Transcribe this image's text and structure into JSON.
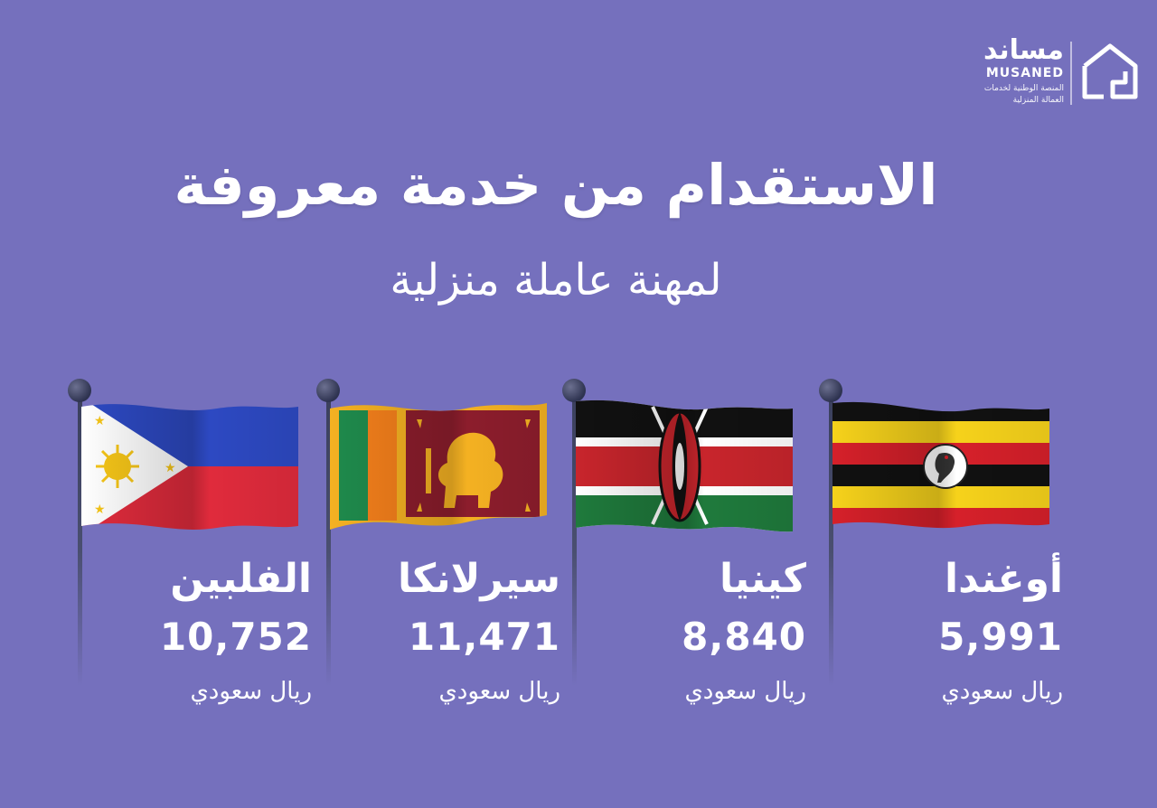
{
  "logo": {
    "arabic": "مساند",
    "english": "MUSANED",
    "tagline_line1": "المنصة الوطنية لخدمات",
    "tagline_line2": "العمالة المنزلية"
  },
  "title": "الاستقدام من خدمة معروفة",
  "subtitle": "لمهنة عاملة منزلية",
  "countries": [
    {
      "name": "الفلبين",
      "price": "10,752",
      "currency": "ريال سعودي",
      "flag": "philippines-flag"
    },
    {
      "name": "سيرلانكا",
      "price": "11,471",
      "currency": "ريال سعودي",
      "flag": "sri-lanka-flag"
    },
    {
      "name": "كينيا",
      "price": "8,840",
      "currency": "ريال سعودي",
      "flag": "kenya-flag"
    },
    {
      "name": "أوغندا",
      "price": "5,991",
      "currency": "ريال سعودي",
      "flag": "uganda-flag"
    }
  ],
  "colors": {
    "background": "#7570bd",
    "text": "#ffffff",
    "pole": "#3a3f5c"
  }
}
